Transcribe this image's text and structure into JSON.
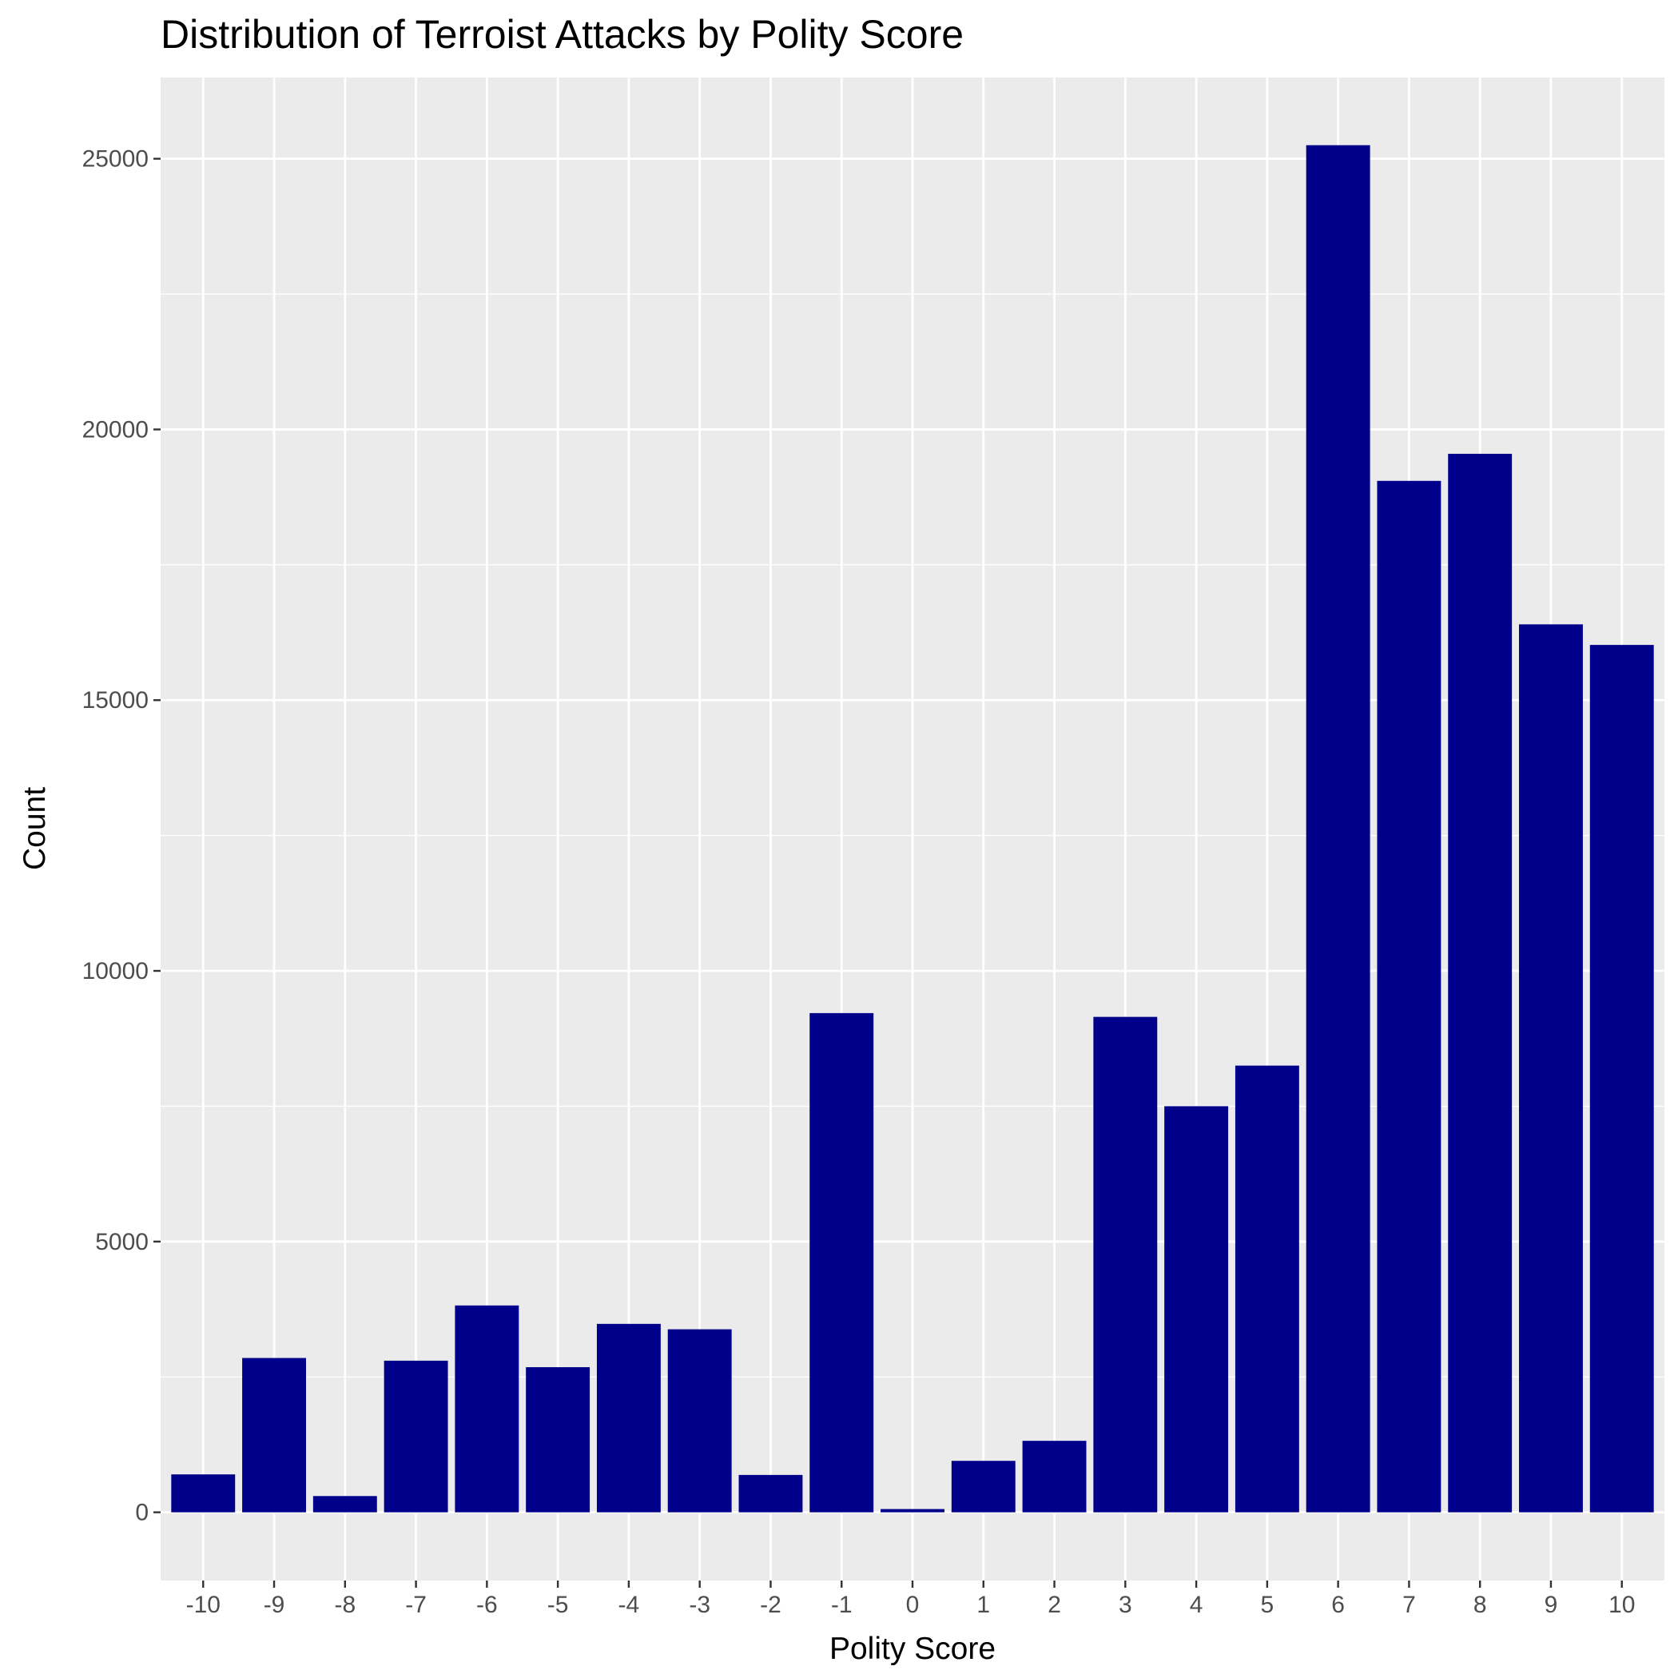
{
  "chart_data": {
    "type": "bar",
    "title": "Distribution of Terroist Attacks by Polity Score",
    "xlabel": "Polity Score",
    "ylabel": "Count",
    "categories": [
      "-10",
      "-9",
      "-8",
      "-7",
      "-6",
      "-5",
      "-4",
      "-3",
      "-2",
      "-1",
      "0",
      "1",
      "2",
      "3",
      "4",
      "5",
      "6",
      "7",
      "8",
      "9",
      "10"
    ],
    "values": [
      700,
      2850,
      300,
      2800,
      3820,
      2680,
      3480,
      3380,
      690,
      9220,
      60,
      950,
      1320,
      9150,
      7500,
      8250,
      25250,
      19050,
      19550,
      16400,
      16020
    ],
    "yticks": [
      0,
      5000,
      10000,
      15000,
      20000,
      25000
    ],
    "ylim": [
      -1260,
      26500
    ],
    "bar_color": "#00008B",
    "panel_background": "#EBEBEB",
    "grid_color": "#FFFFFF",
    "grid": true,
    "legend": "none"
  }
}
